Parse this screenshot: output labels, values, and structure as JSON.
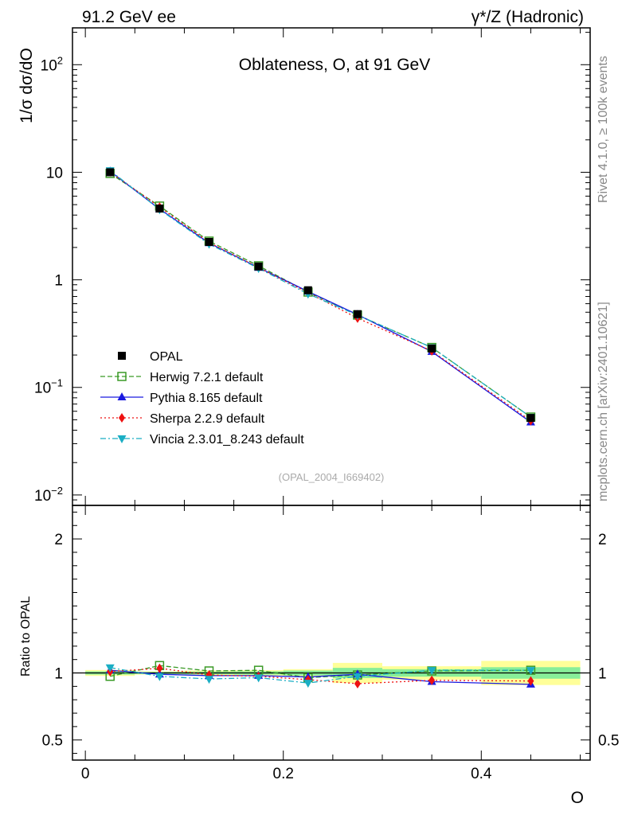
{
  "header": {
    "left_label": "91.2 GeV ee",
    "right_label": "γ*/Z (Hadronic)"
  },
  "side_labels": {
    "rivet": "Rivet 4.1.0, ≥ 100k events",
    "mcplots": "mcplots.cern.ch [arXiv:2401.10621]"
  },
  "colors": {
    "data": "#000000",
    "herwig": "#3a9a26",
    "pythia": "#1a1ae0",
    "sherpa": "#ee1111",
    "vincia": "#1aaec4",
    "band_yellow": "#ffff99",
    "band_green": "#88ee99"
  },
  "chart_data": [
    {
      "type": "line",
      "title": "Oblateness, O, at 91 GeV",
      "watermark": "(OPAL_2004_I669402)",
      "xlabel": "O",
      "ylabel": "1/σ  dσ/dO",
      "yscale": "log",
      "xlim": [
        -0.013,
        0.51
      ],
      "ylim": [
        0.008,
        220
      ],
      "ytick_labels": [
        "10^-2",
        "10^-1",
        "1",
        "10",
        "10^2"
      ],
      "x_bin_edges": [
        0.0,
        0.05,
        0.1,
        0.15,
        0.2,
        0.25,
        0.3,
        0.4,
        0.5
      ],
      "x": [
        0.025,
        0.075,
        0.125,
        0.175,
        0.225,
        0.275,
        0.35,
        0.45
      ],
      "series": [
        {
          "name": "OPAL",
          "marker": "square",
          "values": [
            10.0,
            4.6,
            2.25,
            1.33,
            0.8,
            0.48,
            0.23,
            0.052
          ]
        },
        {
          "name": "Herwig 7.2.1 default",
          "marker": "open-square",
          "line": "dashed",
          "values": [
            9.75,
            4.85,
            2.29,
            1.35,
            0.77,
            0.47,
            0.235,
            0.053
          ]
        },
        {
          "name": "Pythia 8.165 default",
          "marker": "triangle-up",
          "line": "solid",
          "values": [
            10.2,
            4.55,
            2.2,
            1.3,
            0.78,
            0.475,
            0.215,
            0.0475
          ]
        },
        {
          "name": "Sherpa 2.2.9 default",
          "marker": "diamond",
          "line": "dotted",
          "values": [
            10.1,
            4.75,
            2.22,
            1.3,
            0.76,
            0.44,
            0.218,
            0.049
          ]
        },
        {
          "name": "Vincia 2.3.01_8.243 default",
          "marker": "triangle-down",
          "line": "dashdot",
          "values": [
            10.4,
            4.5,
            2.15,
            1.28,
            0.74,
            0.47,
            0.235,
            0.053
          ]
        }
      ],
      "legend_position": "lower-left"
    },
    {
      "type": "line",
      "ylabel": "Ratio to OPAL",
      "xlabel": "O",
      "xlim": [
        -0.013,
        0.51
      ],
      "ylim": [
        0.35,
        2.25
      ],
      "xtick_labels": [
        "0",
        "0.2",
        "0.4"
      ],
      "ytick_labels": [
        "0.5",
        "1",
        "2"
      ],
      "x_bin_edges": [
        0.0,
        0.05,
        0.1,
        0.15,
        0.2,
        0.25,
        0.3,
        0.4,
        0.5
      ],
      "x": [
        0.025,
        0.075,
        0.125,
        0.175,
        0.225,
        0.275,
        0.35,
        0.45
      ],
      "band_yellow_halfwidth": [
        0.022,
        0.012,
        0.018,
        0.02,
        0.028,
        0.075,
        0.05,
        0.09
      ],
      "band_green_halfwidth": [
        0.012,
        0.008,
        0.01,
        0.012,
        0.018,
        0.038,
        0.028,
        0.043
      ],
      "series": [
        {
          "name": "Herwig 7.2.1 default",
          "values": [
            0.975,
            1.055,
            1.015,
            1.02,
            0.965,
            0.985,
            1.015,
            1.02
          ]
        },
        {
          "name": "Pythia 8.165 default",
          "values": [
            1.02,
            0.99,
            0.98,
            0.98,
            0.97,
            0.99,
            0.935,
            0.915
          ]
        },
        {
          "name": "Sherpa 2.2.9 default",
          "values": [
            1.01,
            1.035,
            0.985,
            0.975,
            0.95,
            0.92,
            0.945,
            0.94
          ]
        },
        {
          "name": "Vincia 2.3.01_8.243 default",
          "values": [
            1.04,
            0.975,
            0.955,
            0.965,
            0.925,
            0.975,
            1.02,
            1.02
          ]
        }
      ]
    }
  ]
}
